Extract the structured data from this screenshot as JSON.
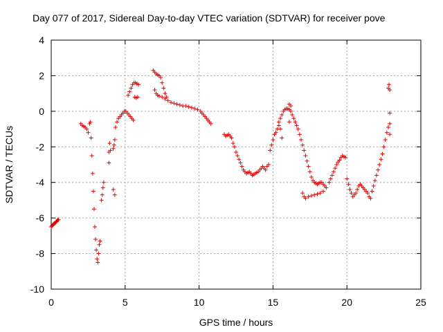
{
  "chart_data": {
    "type": "scatter",
    "title": "Day 077 of 2017, Sidereal Day-to-day VTEC variation (SDTVAR) for receiver pove",
    "xlabel": "GPS time / hours",
    "ylabel": "SDTVAR / TECUs",
    "xlim": [
      0,
      25
    ],
    "ylim": [
      -10,
      4
    ],
    "xticks": [
      0,
      5,
      10,
      15,
      20,
      25
    ],
    "yticks": [
      -10,
      -8,
      -6,
      -4,
      -2,
      0,
      2,
      4
    ],
    "grid": true,
    "marker": "+",
    "color": "#e00000",
    "series": [
      {
        "name": "SDTVAR",
        "x": [
          0.0,
          0.05,
          0.1,
          0.15,
          0.2,
          0.25,
          0.3,
          0.35,
          0.4,
          0.45,
          0.5,
          2.0,
          2.1,
          2.2,
          2.3,
          2.4,
          2.5,
          2.6,
          2.65,
          2.7,
          2.75,
          2.8,
          2.85,
          2.9,
          2.95,
          3.0,
          3.05,
          3.1,
          3.15,
          3.2,
          3.25,
          3.3,
          3.4,
          3.45,
          3.5,
          3.55,
          3.9,
          3.95,
          4.0,
          4.2,
          4.25,
          4.3,
          4.35,
          4.45,
          4.55,
          4.65,
          4.75,
          4.85,
          4.95,
          5.05,
          5.15,
          5.25,
          5.35,
          5.45,
          5.55,
          5.2,
          5.3,
          5.4,
          5.5,
          5.6,
          5.7,
          5.8,
          5.9,
          5.65,
          5.75,
          5.85,
          6.9,
          7.0,
          7.1,
          7.2,
          7.3,
          7.4,
          7.5,
          7.6,
          7.7,
          7.8,
          7.0,
          7.1,
          7.2,
          7.3,
          7.5,
          7.7,
          7.9,
          8.1,
          8.3,
          8.5,
          8.7,
          8.9,
          9.1,
          9.3,
          9.5,
          9.7,
          9.9,
          10.1,
          10.2,
          10.3,
          10.4,
          10.5,
          10.6,
          10.7,
          10.8,
          11.7,
          11.8,
          11.9,
          12.0,
          12.1,
          12.2,
          12.3,
          12.4,
          12.5,
          12.6,
          12.7,
          12.8,
          12.9,
          13.0,
          13.1,
          13.2,
          13.3,
          13.4,
          13.5,
          13.6,
          13.7,
          13.8,
          13.9,
          14.0,
          14.1,
          14.2,
          14.3,
          14.4,
          14.5,
          14.6,
          14.7,
          14.8,
          14.9,
          15.0,
          15.1,
          15.2,
          15.3,
          15.4,
          15.5,
          15.6,
          15.4,
          15.5,
          15.6,
          15.7,
          15.8,
          15.9,
          16.0,
          16.1,
          16.2,
          16.3,
          16.4,
          16.5,
          16.6,
          16.7,
          16.8,
          16.9,
          17.0,
          17.1,
          17.2,
          17.3,
          17.4,
          17.5,
          17.6,
          17.7,
          17.8,
          17.9,
          18.0,
          18.1,
          18.2,
          18.3,
          18.4,
          18.5,
          18.6,
          17.0,
          17.1,
          17.2,
          17.4,
          17.6,
          17.8,
          18.0,
          18.2,
          18.4,
          18.8,
          18.9,
          19.0,
          19.1,
          19.2,
          19.3,
          19.4,
          19.5,
          19.6,
          19.7,
          19.8,
          19.9,
          20.0,
          20.1,
          20.2,
          20.3,
          20.4,
          20.5,
          20.6,
          20.7,
          20.8,
          20.9,
          21.0,
          21.1,
          21.2,
          21.3,
          21.4,
          21.5,
          21.6,
          21.7,
          21.8,
          21.9,
          22.0,
          22.1,
          22.2,
          22.3,
          22.4,
          22.5,
          22.6,
          22.7,
          22.8,
          22.9,
          22.8,
          22.85,
          22.9,
          22.9,
          22.9,
          16.1,
          16.2,
          16.1,
          4.2,
          4.3,
          3.9
        ],
        "y": [
          -6.5,
          -6.45,
          -6.4,
          -6.35,
          -6.3,
          -6.3,
          -6.25,
          -6.2,
          -6.15,
          -6.1,
          -6.1,
          -0.7,
          -0.8,
          -0.85,
          -0.9,
          -1.0,
          -1.2,
          -0.7,
          -0.6,
          -1.5,
          -2.5,
          -3.5,
          -4.5,
          -5.5,
          -6.5,
          -7.2,
          -7.8,
          -8.3,
          -8.5,
          -8.0,
          -7.5,
          -7.3,
          -5.0,
          -4.7,
          -4.3,
          -4.0,
          -2.9,
          -1.8,
          -2.2,
          -2.1,
          -1.9,
          -1.6,
          -0.9,
          -0.6,
          -0.4,
          -0.3,
          -0.2,
          -0.1,
          0.0,
          0.0,
          -0.1,
          -0.2,
          -0.3,
          -0.4,
          -0.5,
          0.9,
          1.1,
          1.3,
          1.5,
          1.6,
          1.6,
          1.55,
          1.5,
          0.8,
          0.75,
          0.8,
          2.3,
          2.2,
          2.1,
          2.05,
          2.0,
          1.9,
          1.6,
          1.3,
          1.0,
          0.8,
          1.2,
          1.0,
          0.9,
          0.85,
          0.8,
          0.7,
          0.6,
          0.5,
          0.45,
          0.4,
          0.35,
          0.3,
          0.3,
          0.25,
          0.2,
          0.15,
          0.1,
          0.0,
          -0.1,
          -0.2,
          -0.3,
          -0.4,
          -0.5,
          -0.6,
          -0.7,
          -1.3,
          -1.4,
          -1.35,
          -1.3,
          -1.4,
          -1.5,
          -1.8,
          -2.0,
          -2.3,
          -2.5,
          -2.7,
          -2.9,
          -3.1,
          -3.3,
          -3.4,
          -3.5,
          -3.45,
          -3.4,
          -3.5,
          -3.6,
          -3.55,
          -3.5,
          -3.45,
          -3.4,
          -3.3,
          -3.2,
          -3.1,
          -3.2,
          -3.3,
          -3.1,
          -3.0,
          -2.2,
          -1.9,
          -1.6,
          -1.3,
          -1.2,
          -1.0,
          -0.8,
          -1.0,
          -1.5,
          -0.6,
          -0.4,
          -0.2,
          0.0,
          0.1,
          0.15,
          0.15,
          0.1,
          0.0,
          -0.2,
          -0.4,
          -0.6,
          -0.8,
          -1.0,
          -1.3,
          -1.6,
          -1.9,
          -2.2,
          -2.5,
          -2.8,
          -3.1,
          -3.4,
          -3.7,
          -3.9,
          -4.0,
          -4.05,
          -4.1,
          -4.05,
          -4.0,
          -4.0,
          -4.1,
          -4.2,
          -4.3,
          -4.6,
          -4.8,
          -4.9,
          -4.8,
          -4.75,
          -4.7,
          -4.65,
          -4.6,
          -4.5,
          -4.0,
          -3.8,
          -3.6,
          -3.4,
          -3.2,
          -3.0,
          -2.85,
          -2.75,
          -2.6,
          -2.5,
          -2.55,
          -2.6,
          -3.8,
          -4.1,
          -4.4,
          -4.6,
          -4.8,
          -4.7,
          -4.6,
          -4.4,
          -4.2,
          -4.1,
          -4.2,
          -4.3,
          -4.4,
          -4.5,
          -4.6,
          -4.8,
          -4.9,
          -4.5,
          -4.2,
          -3.9,
          -3.6,
          -3.3,
          -3.0,
          -2.7,
          -2.4,
          -2.0,
          -1.6,
          -1.2,
          -0.9,
          -0.7,
          1.3,
          1.5,
          1.2,
          -0.1,
          -1.3,
          0.4,
          0.3,
          -0.6,
          -4.4,
          -4.7,
          -2.3
        ]
      }
    ]
  }
}
